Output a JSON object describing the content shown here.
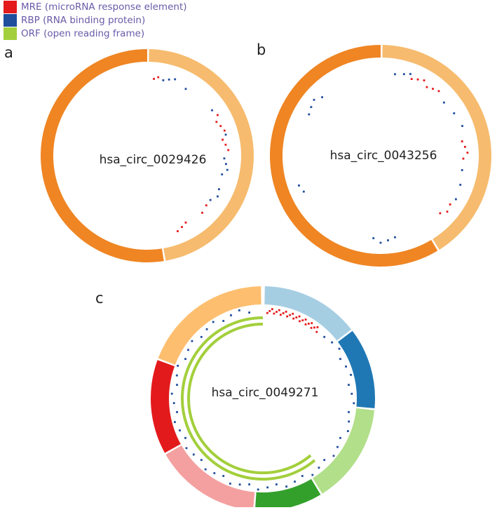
{
  "legend": [
    {
      "label": "MRE (microRNA response element)",
      "color": "#e41a1c"
    },
    {
      "label": "RBP (RNA binding protein)",
      "color": "#1f4e9c"
    },
    {
      "label": "ORF (open reading frame)",
      "color": "#a3cf3c"
    }
  ],
  "panels": [
    {
      "label": "a",
      "name": "hsa_circ_0029426"
    },
    {
      "label": "b",
      "name": "hsa_circ_0043256"
    },
    {
      "label": "c",
      "name": "hsa_circ_0049271"
    }
  ]
}
